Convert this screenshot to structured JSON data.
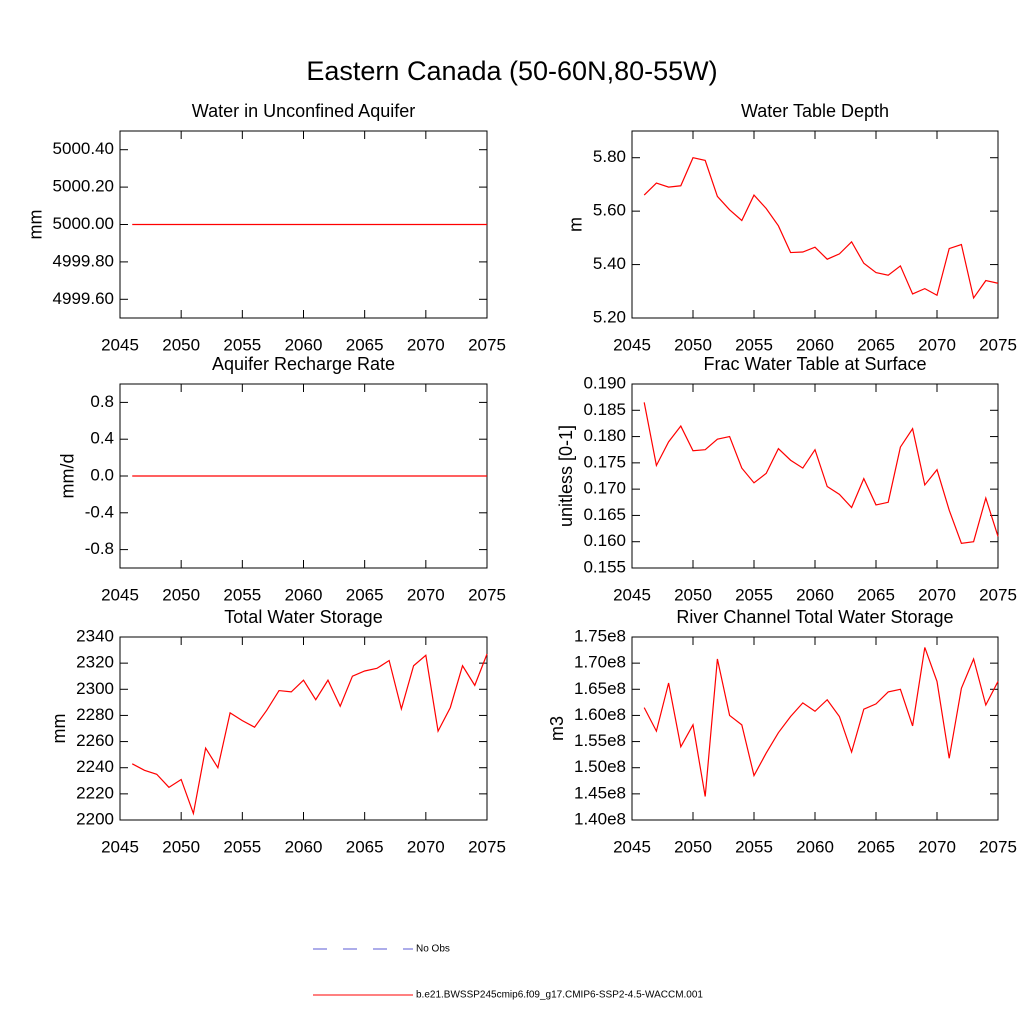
{
  "title": "Eastern Canada (50-60N,80-55W)",
  "legend": [
    {
      "name": "No Obs",
      "color": "#5b5bd6",
      "dash": true
    },
    {
      "name": "b.e21.BWSSP245cmip6.f09_g17.CMIP6-SSP2-4.5-WACCM.001",
      "color": "#ff0000",
      "dash": false
    }
  ],
  "chart_data": [
    {
      "type": "line",
      "title": "Water in Unconfined Aquifer",
      "ylabel": "mm",
      "color": "#ff0000",
      "x": [
        2046,
        2047,
        2048,
        2049,
        2050,
        2051,
        2052,
        2053,
        2054,
        2055,
        2056,
        2057,
        2058,
        2059,
        2060,
        2061,
        2062,
        2063,
        2064,
        2065,
        2066,
        2067,
        2068,
        2069,
        2070,
        2071,
        2072,
        2073,
        2074,
        2075
      ],
      "values": [
        5000,
        5000,
        5000,
        5000,
        5000,
        5000,
        5000,
        5000,
        5000,
        5000,
        5000,
        5000,
        5000,
        5000,
        5000,
        5000,
        5000,
        5000,
        5000,
        5000,
        5000,
        5000,
        5000,
        5000,
        5000,
        5000,
        5000,
        5000,
        5000,
        5000
      ],
      "xlim": [
        2045,
        2075
      ],
      "xticks": [
        2045,
        2050,
        2055,
        2060,
        2065,
        2070,
        2075
      ],
      "ylim": [
        4999.5,
        5000.5
      ],
      "yticks": [
        {
          "value": 4999.6,
          "label": "4999.60"
        },
        {
          "value": 4999.8,
          "label": "4999.80"
        },
        {
          "value": 5000,
          "label": "5000.00"
        },
        {
          "value": 5000.2,
          "label": "5000.20"
        },
        {
          "value": 5000.4,
          "label": "5000.40"
        }
      ]
    },
    {
      "type": "line",
      "title": "Water Table Depth",
      "ylabel": "m",
      "color": "#ff0000",
      "x": [
        2046,
        2047,
        2048,
        2049,
        2050,
        2051,
        2052,
        2053,
        2054,
        2055,
        2056,
        2057,
        2058,
        2059,
        2060,
        2061,
        2062,
        2063,
        2064,
        2065,
        2066,
        2067,
        2068,
        2069,
        2070,
        2071,
        2072,
        2073,
        2074,
        2075
      ],
      "values": [
        5.66,
        5.705,
        5.69,
        5.695,
        5.8,
        5.79,
        5.655,
        5.605,
        5.565,
        5.66,
        5.61,
        5.545,
        5.445,
        5.447,
        5.465,
        5.42,
        5.44,
        5.485,
        5.405,
        5.37,
        5.36,
        5.395,
        5.29,
        5.31,
        5.285,
        5.46,
        5.475,
        5.275,
        5.34,
        5.33
      ],
      "xlim": [
        2045,
        2075
      ],
      "xticks": [
        2045,
        2050,
        2055,
        2060,
        2065,
        2070,
        2075
      ],
      "ylim": [
        5.2,
        5.9
      ],
      "yticks": [
        {
          "value": 5.2,
          "label": "5.20"
        },
        {
          "value": 5.4,
          "label": "5.40"
        },
        {
          "value": 5.6,
          "label": "5.60"
        },
        {
          "value": 5.8,
          "label": "5.80"
        }
      ]
    },
    {
      "type": "line",
      "title": "Aquifer Recharge Rate",
      "ylabel": "mm/d",
      "color": "#ff0000",
      "x": [
        2046,
        2047,
        2048,
        2049,
        2050,
        2051,
        2052,
        2053,
        2054,
        2055,
        2056,
        2057,
        2058,
        2059,
        2060,
        2061,
        2062,
        2063,
        2064,
        2065,
        2066,
        2067,
        2068,
        2069,
        2070,
        2071,
        2072,
        2073,
        2074,
        2075
      ],
      "values": [
        0,
        0,
        0,
        0,
        0,
        0,
        0,
        0,
        0,
        0,
        0,
        0,
        0,
        0,
        0,
        0,
        0,
        0,
        0,
        0,
        0,
        0,
        0,
        0,
        0,
        0,
        0,
        0,
        0,
        0
      ],
      "xlim": [
        2045,
        2075
      ],
      "xticks": [
        2045,
        2050,
        2055,
        2060,
        2065,
        2070,
        2075
      ],
      "ylim": [
        -1.0,
        1.0
      ],
      "yticks": [
        -0.8,
        -0.4,
        {
          "value": 0,
          "label": "0.0"
        },
        0.4,
        0.8
      ]
    },
    {
      "type": "line",
      "title": "Frac Water Table at Surface",
      "ylabel": "unitless [0-1]",
      "color": "#ff0000",
      "x": [
        2046,
        2047,
        2048,
        2049,
        2050,
        2051,
        2052,
        2053,
        2054,
        2055,
        2056,
        2057,
        2058,
        2059,
        2060,
        2061,
        2062,
        2063,
        2064,
        2065,
        2066,
        2067,
        2068,
        2069,
        2070,
        2071,
        2072,
        2073,
        2074,
        2075
      ],
      "values": [
        0.1865,
        0.1745,
        0.179,
        0.182,
        0.1773,
        0.1775,
        0.1795,
        0.18,
        0.174,
        0.1712,
        0.173,
        0.1777,
        0.1755,
        0.174,
        0.1775,
        0.1705,
        0.169,
        0.1665,
        0.172,
        0.167,
        0.1675,
        0.178,
        0.1815,
        0.1708,
        0.1737,
        0.166,
        0.1597,
        0.16,
        0.1683,
        0.161
      ],
      "xlim": [
        2045,
        2075
      ],
      "xticks": [
        2045,
        2050,
        2055,
        2060,
        2065,
        2070,
        2075
      ],
      "ylim": [
        0.155,
        0.19
      ],
      "yticks": [
        0.155,
        {
          "value": 0.16,
          "label": "0.160"
        },
        0.165,
        {
          "value": 0.17,
          "label": "0.170"
        },
        0.175,
        {
          "value": 0.18,
          "label": "0.180"
        },
        0.185,
        {
          "value": 0.19,
          "label": "0.190"
        }
      ]
    },
    {
      "type": "line",
      "title": "Total Water Storage",
      "ylabel": "mm",
      "color": "#ff0000",
      "x": [
        2046,
        2047,
        2048,
        2049,
        2050,
        2051,
        2052,
        2053,
        2054,
        2055,
        2056,
        2057,
        2058,
        2059,
        2060,
        2061,
        2062,
        2063,
        2064,
        2065,
        2066,
        2067,
        2068,
        2069,
        2070,
        2071,
        2072,
        2073,
        2074,
        2075
      ],
      "values": [
        2243,
        2238,
        2235,
        2225,
        2231,
        2205,
        2255,
        2240,
        2282,
        2276,
        2271,
        2284,
        2299,
        2298,
        2307,
        2292,
        2307,
        2287,
        2310,
        2314,
        2316,
        2322,
        2285,
        2318,
        2326,
        2268,
        2286,
        2318,
        2303,
        2327
      ],
      "xlim": [
        2045,
        2075
      ],
      "xticks": [
        2045,
        2050,
        2055,
        2060,
        2065,
        2070,
        2075
      ],
      "ylim": [
        2200,
        2340
      ],
      "yticks": [
        2200,
        2220,
        2240,
        2260,
        2280,
        2300,
        2320,
        2340
      ]
    },
    {
      "type": "line",
      "title": "River Channel Total Water Storage",
      "ylabel": "m3",
      "color": "#ff0000",
      "x": [
        2046,
        2047,
        2048,
        2049,
        2050,
        2051,
        2052,
        2053,
        2054,
        2055,
        2056,
        2057,
        2058,
        2059,
        2060,
        2061,
        2062,
        2063,
        2064,
        2065,
        2066,
        2067,
        2068,
        2069,
        2070,
        2071,
        2072,
        2073,
        2074,
        2075
      ],
      "values": [
        161500000,
        157000000,
        166200000,
        154000000,
        158200000,
        144500000,
        170800000,
        160000000,
        158200000,
        148500000,
        152800000,
        156700000,
        159800000,
        162400000,
        160800000,
        163000000,
        159800000,
        153000000,
        161200000,
        162200000,
        164500000,
        165000000,
        158000000,
        173000000,
        166500000,
        151800000,
        165200000,
        170800000,
        162000000,
        166500000
      ],
      "xlim": [
        2045,
        2075
      ],
      "xticks": [
        2045,
        2050,
        2055,
        2060,
        2065,
        2070,
        2075
      ],
      "ylim": [
        140000000,
        175000000
      ],
      "yticks": [
        {
          "value": 140000000,
          "label": "1.40e8"
        },
        {
          "value": 145000000,
          "label": "1.45e8"
        },
        {
          "value": 150000000,
          "label": "1.50e8"
        },
        {
          "value": 155000000,
          "label": "1.55e8"
        },
        {
          "value": 160000000,
          "label": "1.60e8"
        },
        {
          "value": 165000000,
          "label": "1.65e8"
        },
        {
          "value": 170000000,
          "label": "1.70e8"
        },
        {
          "value": 175000000,
          "label": "1.75e8"
        }
      ]
    }
  ]
}
